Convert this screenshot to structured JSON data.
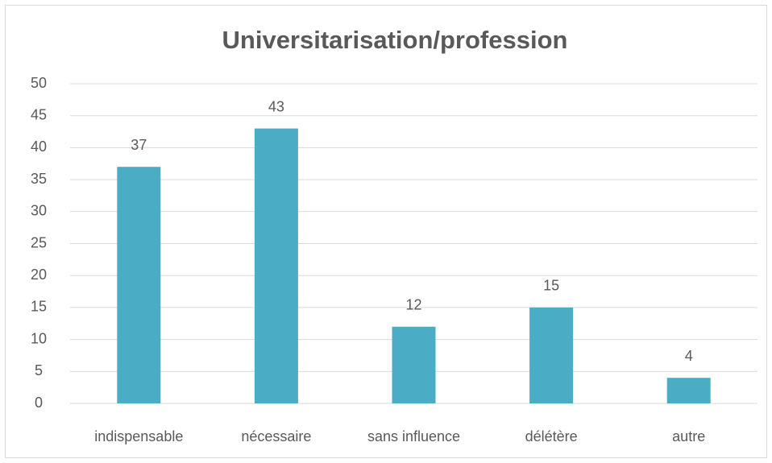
{
  "chart_data": {
    "type": "bar",
    "title": "Universitarisation/profession",
    "categories": [
      "indispensable",
      "nécessaire",
      "sans influence",
      "délétère",
      "autre"
    ],
    "values": [
      37,
      43,
      12,
      15,
      4
    ],
    "color": "#4bacc6",
    "ylim": [
      0,
      50
    ],
    "yticks": [
      0,
      5,
      10,
      15,
      20,
      25,
      30,
      35,
      40,
      45,
      50
    ],
    "grid": true
  }
}
